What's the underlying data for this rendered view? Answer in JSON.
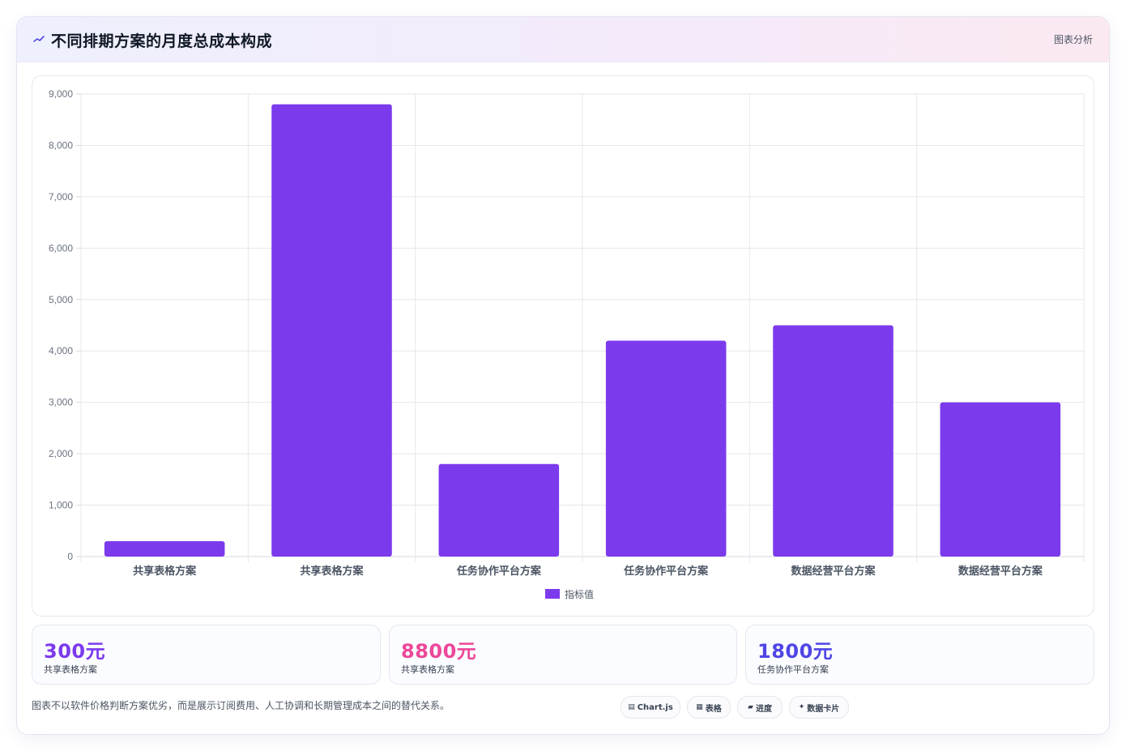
{
  "header": {
    "icon": "chart-line-icon",
    "title": "不同排期方案的月度总成本构成",
    "tag": "图表分析"
  },
  "chart_data": {
    "type": "bar",
    "categories": [
      "共享表格方案",
      "共享表格方案",
      "任务协作平台方案",
      "任务协作平台方案",
      "数据经营平台方案",
      "数据经营平台方案"
    ],
    "series": [
      {
        "name": "指标值",
        "values": [
          300,
          8800,
          1800,
          4200,
          4500,
          3000
        ],
        "color": "#7c3aed"
      }
    ],
    "ylim": [
      0,
      9000
    ],
    "yticks": [
      "0",
      "1,000",
      "2,000",
      "3,000",
      "4,000",
      "5,000",
      "6,000",
      "7,000",
      "8,000",
      "9,000"
    ],
    "grid": true,
    "legend_position": "bottom"
  },
  "stats": [
    {
      "value": "300元",
      "label": "共享表格方案",
      "color": "#7c3aed"
    },
    {
      "value": "8800元",
      "label": "共享表格方案",
      "color": "#ec4899"
    },
    {
      "value": "1800元",
      "label": "任务协作平台方案",
      "color": "#4f46e5"
    }
  ],
  "footnote": "图表不以软件价格判断方案优劣，而是展示订阅费用、人工协调和长期管理成本之间的替代关系。",
  "chips": [
    {
      "icon": "chart-icon",
      "glyph": "▤",
      "label": "Chart.js"
    },
    {
      "icon": "table-icon",
      "glyph": "▦",
      "label": "表格"
    },
    {
      "icon": "progress-icon",
      "glyph": "▰",
      "label": "进度"
    },
    {
      "icon": "sparkle-icon",
      "glyph": "✦",
      "label": "数据卡片"
    }
  ]
}
